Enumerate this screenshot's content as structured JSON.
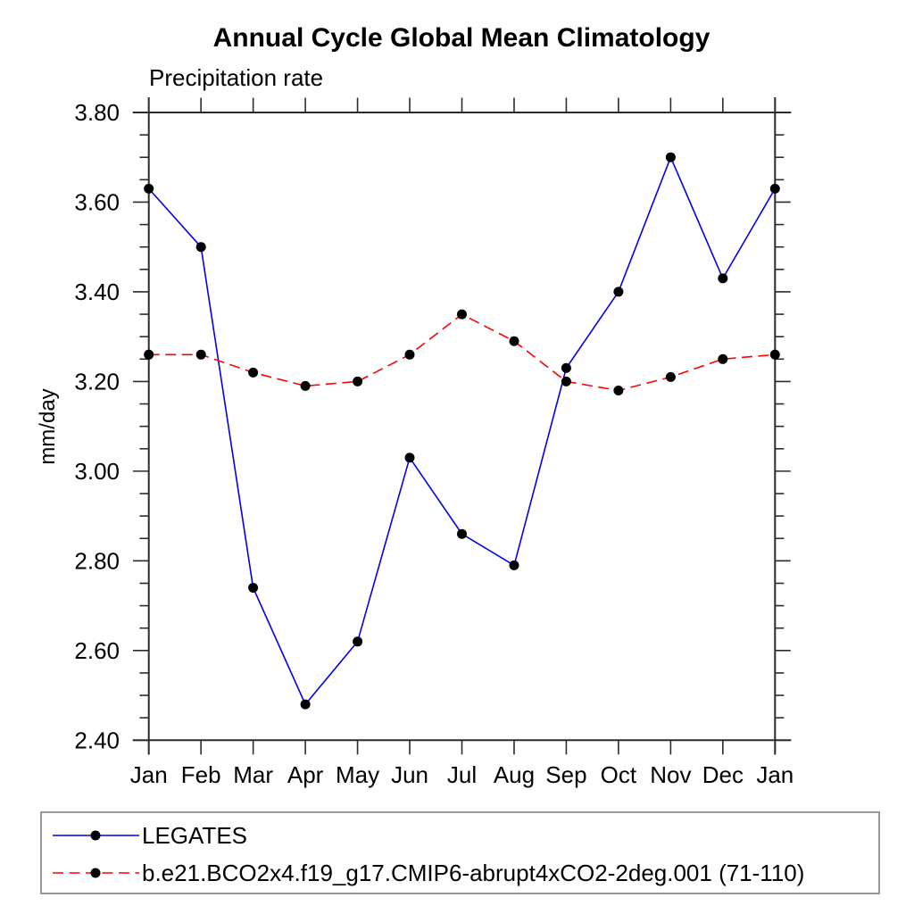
{
  "chart_data": {
    "type": "line",
    "title": "Annual Cycle Global Mean Climatology",
    "subtitle": "Precipitation rate",
    "ylabel": "mm/day",
    "xlabel": "",
    "categories": [
      "Jan",
      "Feb",
      "Mar",
      "Apr",
      "May",
      "Jun",
      "Jul",
      "Aug",
      "Sep",
      "Oct",
      "Nov",
      "Dec",
      "Jan"
    ],
    "ylim": [
      2.4,
      3.8
    ],
    "ytick_step": 0.2,
    "ytick_minor_step": 0.05,
    "ytick_labels": [
      "2.40",
      "2.60",
      "2.80",
      "3.00",
      "3.20",
      "3.40",
      "3.60",
      "3.80"
    ],
    "grid": false,
    "legend_position": "bottom",
    "axis_color": "#2b2b2b",
    "legend_border_color": "#999999",
    "series": [
      {
        "name": "LEGATES",
        "color": "#0000ee",
        "line_style": "solid",
        "marker": "filled-circle",
        "marker_color": "#000000",
        "values": [
          3.63,
          3.5,
          2.74,
          2.48,
          2.62,
          3.03,
          2.86,
          2.79,
          3.23,
          3.4,
          3.7,
          3.43,
          3.63
        ]
      },
      {
        "name": "b.e21.BCO2x4.f19_g17.CMIP6-abrupt4xCO2-2deg.001 (71-110)",
        "color": "#ff0000",
        "line_style": "dashed",
        "marker": "filled-circle",
        "marker_color": "#000000",
        "values": [
          3.26,
          3.26,
          3.22,
          3.19,
          3.2,
          3.26,
          3.35,
          3.29,
          3.2,
          3.18,
          3.21,
          3.25,
          3.26
        ]
      }
    ]
  }
}
